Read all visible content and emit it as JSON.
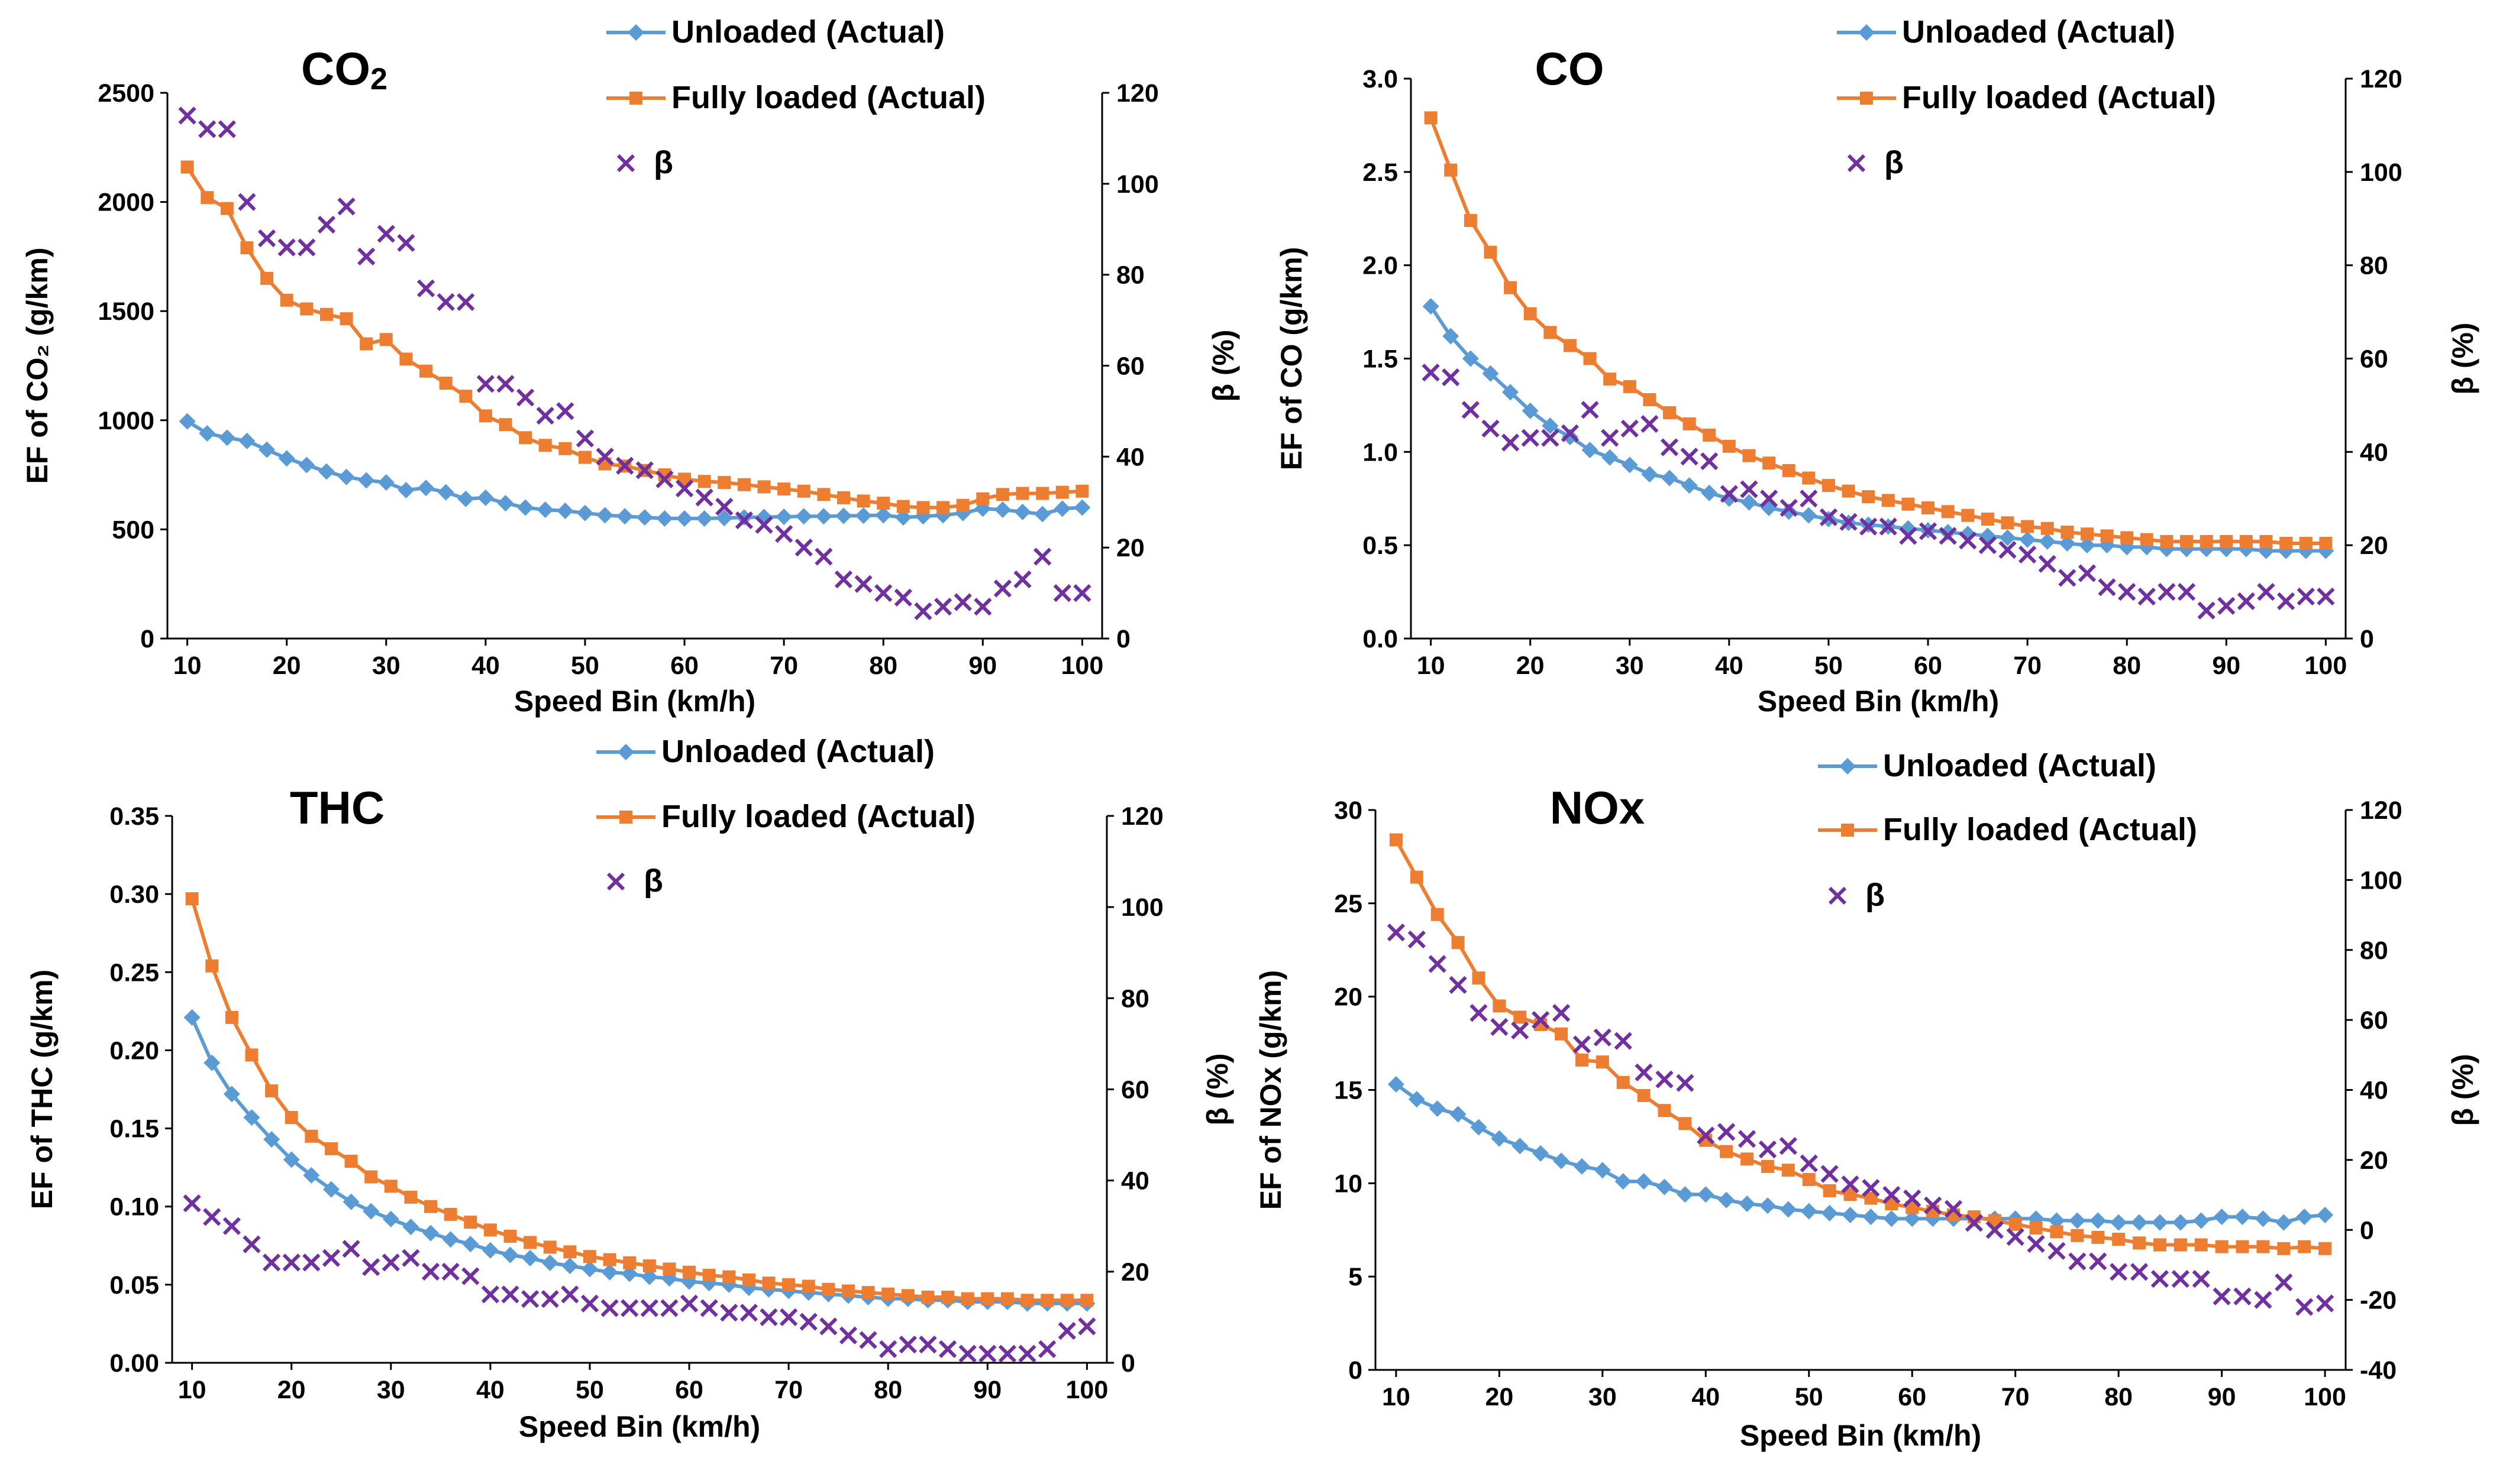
{
  "chart_data": [
    {
      "type": "line",
      "title": "CO",
      "title_subscript": "2",
      "xlabel": "Speed Bin (km/h)",
      "ylabel": "EF of CO₂ (g/km)",
      "y2label": "β (%)",
      "xlim": [
        8,
        102
      ],
      "xticks": [
        10,
        20,
        30,
        40,
        50,
        60,
        70,
        80,
        90,
        100
      ],
      "ylim": [
        0,
        2500
      ],
      "yticks": [
        0,
        500,
        1000,
        1500,
        2000,
        2500
      ],
      "y2lim": [
        0,
        120
      ],
      "y2ticks": [
        0,
        20,
        40,
        60,
        80,
        100,
        120
      ],
      "x": [
        10,
        12,
        14,
        16,
        18,
        20,
        22,
        24,
        26,
        28,
        30,
        32,
        34,
        36,
        38,
        40,
        42,
        44,
        46,
        48,
        50,
        52,
        54,
        56,
        58,
        60,
        62,
        64,
        66,
        68,
        70,
        72,
        74,
        76,
        78,
        80,
        82,
        84,
        86,
        88,
        90,
        92,
        94,
        96,
        98,
        100
      ],
      "series": [
        {
          "name": "Unloaded (Actual)",
          "axis": "left",
          "color": "#5B9BD5",
          "marker": "diamond",
          "values": [
            995,
            940,
            920,
            905,
            865,
            825,
            795,
            765,
            740,
            725,
            715,
            680,
            690,
            670,
            640,
            645,
            620,
            600,
            590,
            585,
            575,
            565,
            560,
            555,
            550,
            550,
            550,
            552,
            555,
            557,
            558,
            560,
            560,
            562,
            563,
            565,
            555,
            560,
            565,
            575,
            595,
            590,
            580,
            570,
            595,
            600
          ]
        },
        {
          "name": "Fully loaded (Actual)",
          "axis": "left",
          "color": "#ED7D31",
          "marker": "square",
          "values": [
            2160,
            2020,
            1970,
            1790,
            1650,
            1550,
            1510,
            1485,
            1465,
            1350,
            1370,
            1280,
            1225,
            1170,
            1110,
            1020,
            980,
            920,
            885,
            870,
            830,
            800,
            790,
            770,
            750,
            730,
            720,
            715,
            705,
            695,
            685,
            675,
            660,
            645,
            630,
            620,
            605,
            600,
            600,
            610,
            640,
            660,
            665,
            665,
            670,
            675
          ]
        },
        {
          "name": "β",
          "axis": "right",
          "color": "#7030A0",
          "marker": "x",
          "values": [
            115,
            112,
            112,
            96,
            88,
            86,
            86,
            91,
            95,
            84,
            89,
            87,
            77,
            74,
            74,
            56,
            56,
            53,
            49,
            50,
            44,
            40,
            38,
            37,
            35,
            33,
            31,
            29,
            26,
            25,
            23,
            20,
            18,
            13,
            12,
            10,
            9,
            6,
            7,
            8,
            7,
            11,
            13,
            18,
            10,
            10
          ]
        }
      ]
    },
    {
      "type": "line",
      "title": "CO",
      "xlabel": "Speed Bin (km/h)",
      "ylabel": "EF of CO (g/km)",
      "y2label": "β (%)",
      "xlim": [
        8,
        102
      ],
      "xticks": [
        10,
        20,
        30,
        40,
        50,
        60,
        70,
        80,
        90,
        100
      ],
      "ylim": [
        0,
        3
      ],
      "yticks": [
        0.0,
        0.5,
        1.0,
        1.5,
        2.0,
        2.5,
        3.0
      ],
      "y2lim": [
        0,
        120
      ],
      "y2ticks": [
        0,
        20,
        40,
        60,
        80,
        100,
        120
      ],
      "x": [
        10,
        12,
        14,
        16,
        18,
        20,
        22,
        24,
        26,
        28,
        30,
        32,
        34,
        36,
        38,
        40,
        42,
        44,
        46,
        48,
        50,
        52,
        54,
        56,
        58,
        60,
        62,
        64,
        66,
        68,
        70,
        72,
        74,
        76,
        78,
        80,
        82,
        84,
        86,
        88,
        90,
        92,
        94,
        96,
        98,
        100
      ],
      "series": [
        {
          "name": "Unloaded (Actual)",
          "axis": "left",
          "color": "#5B9BD5",
          "marker": "diamond",
          "values": [
            1.78,
            1.62,
            1.5,
            1.42,
            1.32,
            1.22,
            1.14,
            1.08,
            1.01,
            0.97,
            0.93,
            0.88,
            0.86,
            0.82,
            0.78,
            0.75,
            0.73,
            0.7,
            0.68,
            0.66,
            0.64,
            0.62,
            0.61,
            0.6,
            0.59,
            0.58,
            0.57,
            0.56,
            0.55,
            0.54,
            0.53,
            0.52,
            0.51,
            0.5,
            0.5,
            0.49,
            0.49,
            0.48,
            0.48,
            0.48,
            0.48,
            0.48,
            0.47,
            0.47,
            0.47,
            0.47
          ]
        },
        {
          "name": "Fully loaded (Actual)",
          "axis": "left",
          "color": "#ED7D31",
          "marker": "square",
          "values": [
            2.79,
            2.51,
            2.24,
            2.07,
            1.88,
            1.74,
            1.64,
            1.57,
            1.5,
            1.39,
            1.35,
            1.28,
            1.21,
            1.15,
            1.09,
            1.03,
            0.98,
            0.94,
            0.9,
            0.86,
            0.82,
            0.79,
            0.76,
            0.74,
            0.72,
            0.7,
            0.68,
            0.66,
            0.64,
            0.62,
            0.6,
            0.59,
            0.57,
            0.56,
            0.55,
            0.54,
            0.53,
            0.52,
            0.52,
            0.52,
            0.52,
            0.52,
            0.52,
            0.51,
            0.51,
            0.51
          ]
        },
        {
          "name": "β",
          "axis": "right",
          "color": "#7030A0",
          "marker": "x",
          "values": [
            57,
            56,
            49,
            45,
            42,
            43,
            43,
            44,
            49,
            43,
            45,
            46,
            41,
            39,
            38,
            31,
            32,
            30,
            28,
            30,
            26,
            25,
            24,
            24,
            22,
            23,
            22,
            21,
            20,
            19,
            18,
            16,
            13,
            14,
            11,
            10,
            9,
            10,
            10,
            6,
            7,
            8,
            10,
            8,
            9,
            9
          ]
        }
      ]
    },
    {
      "type": "line",
      "title": "THC",
      "xlabel": "Speed Bin (km/h)",
      "ylabel": "EF of THC (g/km)",
      "y2label": "β (%)",
      "xlim": [
        8,
        102
      ],
      "xticks": [
        10,
        20,
        30,
        40,
        50,
        60,
        70,
        80,
        90,
        100
      ],
      "ylim": [
        0,
        0.35
      ],
      "yticks": [
        0.0,
        0.05,
        0.1,
        0.15,
        0.2,
        0.25,
        0.3,
        0.35
      ],
      "y2lim": [
        0,
        120
      ],
      "y2ticks": [
        0,
        20,
        40,
        60,
        80,
        100,
        120
      ],
      "x": [
        10,
        12,
        14,
        16,
        18,
        20,
        22,
        24,
        26,
        28,
        30,
        32,
        34,
        36,
        38,
        40,
        42,
        44,
        46,
        48,
        50,
        52,
        54,
        56,
        58,
        60,
        62,
        64,
        66,
        68,
        70,
        72,
        74,
        76,
        78,
        80,
        82,
        84,
        86,
        88,
        90,
        92,
        94,
        96,
        98,
        100
      ],
      "series": [
        {
          "name": "Unloaded (Actual)",
          "axis": "left",
          "color": "#5B9BD5",
          "marker": "diamond",
          "values": [
            0.221,
            0.192,
            0.172,
            0.157,
            0.143,
            0.13,
            0.12,
            0.111,
            0.103,
            0.097,
            0.092,
            0.087,
            0.083,
            0.079,
            0.076,
            0.072,
            0.069,
            0.067,
            0.064,
            0.062,
            0.06,
            0.058,
            0.057,
            0.055,
            0.054,
            0.052,
            0.051,
            0.05,
            0.048,
            0.047,
            0.046,
            0.045,
            0.044,
            0.043,
            0.042,
            0.041,
            0.041,
            0.04,
            0.04,
            0.039,
            0.039,
            0.039,
            0.038,
            0.038,
            0.038,
            0.038
          ]
        },
        {
          "name": "Fully loaded (Actual)",
          "axis": "left",
          "color": "#ED7D31",
          "marker": "square",
          "values": [
            0.297,
            0.254,
            0.221,
            0.197,
            0.174,
            0.157,
            0.145,
            0.137,
            0.129,
            0.119,
            0.113,
            0.106,
            0.1,
            0.095,
            0.09,
            0.085,
            0.081,
            0.077,
            0.074,
            0.071,
            0.068,
            0.066,
            0.064,
            0.062,
            0.06,
            0.058,
            0.056,
            0.055,
            0.053,
            0.051,
            0.05,
            0.049,
            0.047,
            0.046,
            0.045,
            0.044,
            0.043,
            0.042,
            0.042,
            0.041,
            0.041,
            0.041,
            0.04,
            0.04,
            0.04,
            0.04
          ]
        },
        {
          "name": "β",
          "axis": "right",
          "color": "#7030A0",
          "marker": "x",
          "values": [
            35,
            32,
            30,
            26,
            22,
            22,
            22,
            23,
            25,
            21,
            22,
            23,
            20,
            20,
            19,
            15,
            15,
            14,
            14,
            15,
            13,
            12,
            12,
            12,
            12,
            13,
            12,
            11,
            11,
            10,
            10,
            9,
            8,
            6,
            5,
            3,
            4,
            4,
            3,
            2,
            2,
            2,
            2,
            3,
            7,
            8
          ]
        }
      ]
    },
    {
      "type": "line",
      "title": "NOx",
      "xlabel": "Speed Bin (km/h)",
      "ylabel": "EF of NOx (g/km)",
      "y2label": "β (%)",
      "xlim": [
        8,
        102
      ],
      "xticks": [
        10,
        20,
        30,
        40,
        50,
        60,
        70,
        80,
        90,
        100
      ],
      "ylim": [
        0,
        30
      ],
      "yticks": [
        0,
        5,
        10,
        15,
        20,
        25,
        30
      ],
      "y2lim": [
        -40,
        120
      ],
      "y2ticks": [
        -40,
        -20,
        0,
        20,
        40,
        60,
        80,
        100,
        120
      ],
      "x": [
        10,
        12,
        14,
        16,
        18,
        20,
        22,
        24,
        26,
        28,
        30,
        32,
        34,
        36,
        38,
        40,
        42,
        44,
        46,
        48,
        50,
        52,
        54,
        56,
        58,
        60,
        62,
        64,
        66,
        68,
        70,
        72,
        74,
        76,
        78,
        80,
        82,
        84,
        86,
        88,
        90,
        92,
        94,
        96,
        98,
        100
      ],
      "series": [
        {
          "name": "Unloaded (Actual)",
          "axis": "left",
          "color": "#5B9BD5",
          "marker": "diamond",
          "values": [
            15.3,
            14.5,
            14.0,
            13.7,
            13.0,
            12.4,
            12.0,
            11.6,
            11.2,
            10.9,
            10.7,
            10.1,
            10.1,
            9.8,
            9.4,
            9.4,
            9.1,
            8.9,
            8.8,
            8.6,
            8.5,
            8.4,
            8.3,
            8.2,
            8.1,
            8.1,
            8.1,
            8.1,
            8.1,
            8.1,
            8.1,
            8.1,
            8.0,
            8.0,
            8.0,
            7.9,
            7.9,
            7.9,
            7.9,
            8.0,
            8.2,
            8.2,
            8.1,
            7.9,
            8.2,
            8.3
          ]
        },
        {
          "name": "Fully loaded (Actual)",
          "axis": "left",
          "color": "#ED7D31",
          "marker": "square",
          "values": [
            28.4,
            26.4,
            24.4,
            22.9,
            21.0,
            19.5,
            18.9,
            18.5,
            18.0,
            16.6,
            16.5,
            15.4,
            14.7,
            13.9,
            13.2,
            12.3,
            11.7,
            11.3,
            10.9,
            10.7,
            10.2,
            9.6,
            9.4,
            9.2,
            8.9,
            8.7,
            8.5,
            8.3,
            8.2,
            8.0,
            7.8,
            7.6,
            7.4,
            7.2,
            7.1,
            7.0,
            6.8,
            6.7,
            6.7,
            6.7,
            6.6,
            6.6,
            6.6,
            6.5,
            6.6,
            6.5
          ]
        },
        {
          "name": "β",
          "axis": "right",
          "color": "#7030A0",
          "marker": "x",
          "values": [
            85,
            83,
            76,
            70,
            62,
            58,
            57,
            60,
            62,
            53,
            55,
            54,
            45,
            43,
            42,
            27,
            28,
            26,
            23,
            24,
            19,
            16,
            13,
            12,
            10,
            9,
            7,
            6,
            2,
            0,
            -2,
            -4,
            -6,
            -9,
            -9,
            -12,
            -12,
            -14,
            -14,
            -14,
            -19,
            -19,
            -20,
            -15,
            -22,
            -21
          ]
        }
      ]
    }
  ]
}
